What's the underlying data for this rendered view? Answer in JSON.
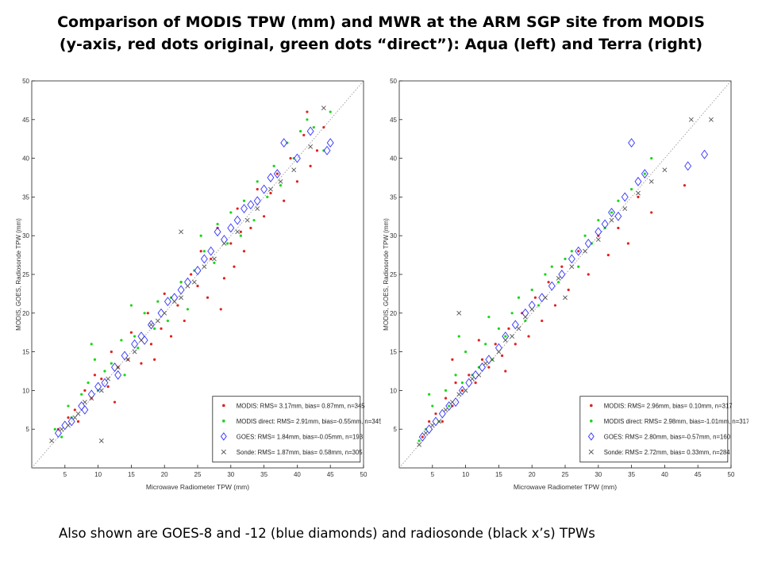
{
  "slide": {
    "title_line1": "Comparison of MODIS TPW (mm) and MWR at the ARM SGP site from MODIS",
    "title_line2": "(y-axis, red dots original, green dots “direct”): Aqua (left) and Terra (right)",
    "caption": "Also shown  are GOES-8 and -12 (blue diamonds) and radiosonde (black x’s) TPWs"
  },
  "colors": {
    "modis": "#e0211f",
    "modis_direct": "#19d619",
    "goes": "#3434ff",
    "sonde": "#555555",
    "one_to_one": "#9a9a9a"
  },
  "chart_data": [
    {
      "type": "scatter",
      "panel": "Aqua",
      "xlabel": "Microwave Radiometer TPW (mm)",
      "ylabel": "MODIS, GOES, Radiosonde TPW (mm)",
      "xlim": [
        0,
        50
      ],
      "ylim": [
        0,
        50
      ],
      "xticks": [
        5,
        10,
        15,
        20,
        25,
        30,
        35,
        40,
        45,
        50
      ],
      "yticks": [
        5,
        10,
        15,
        20,
        25,
        30,
        35,
        40,
        45,
        50
      ],
      "grid": false,
      "one_to_one_line": true,
      "legend_position": "bottom-right",
      "legend": [
        {
          "marker": "dot",
          "color_key": "modis",
          "label": "MODIS:  RMS= 3.17mm, bias= 0.87mm, n=345"
        },
        {
          "marker": "dot",
          "color_key": "modis_direct",
          "label": "MODIS direct:  RMS= 2.91mm, bias=-0.55mm, n=345"
        },
        {
          "marker": "diamond",
          "color_key": "goes",
          "label": "GOES:  RMS= 1.84mm, bias=-0.05mm, n=193"
        },
        {
          "marker": "x",
          "color_key": "sonde",
          "label": "Sonde:  RMS= 1.87mm, bias= 0.58mm, n=305"
        }
      ],
      "series": [
        {
          "name": "MODIS",
          "marker": "dot",
          "color_key": "modis",
          "x": [
            4.0,
            5.5,
            6.5,
            7.0,
            8.0,
            9.0,
            9.5,
            10.5,
            11.5,
            12.0,
            13.0,
            14.5,
            15.0,
            16.5,
            17.5,
            18.0,
            19.5,
            20.0,
            21.0,
            22.0,
            23.0,
            24.0,
            25.0,
            25.5,
            26.5,
            27.0,
            28.0,
            29.0,
            30.0,
            30.5,
            31.0,
            32.0,
            33.0,
            34.0,
            35.0,
            36.0,
            37.0,
            38.0,
            39.0,
            40.0,
            41.0,
            41.5,
            42.0,
            43.0,
            44.0,
            12.5,
            18.5,
            22.5,
            28.5,
            31.5
          ],
          "y": [
            5.0,
            6.5,
            7.5,
            6.0,
            10.0,
            9.0,
            12.0,
            11.5,
            10.5,
            15.0,
            13.0,
            14.0,
            17.5,
            13.5,
            20.0,
            16.0,
            18.0,
            22.5,
            17.0,
            21.0,
            19.0,
            25.0,
            23.5,
            28.0,
            22.0,
            27.0,
            31.0,
            24.5,
            29.0,
            26.0,
            33.5,
            28.0,
            31.0,
            36.0,
            32.5,
            35.5,
            38.0,
            34.5,
            40.0,
            37.0,
            43.0,
            46.0,
            39.0,
            41.0,
            44.0,
            8.5,
            14.0,
            24.0,
            20.5,
            30.5
          ]
        },
        {
          "name": "MODIS direct",
          "marker": "dot",
          "color_key": "modis_direct",
          "x": [
            3.5,
            4.5,
            5.5,
            6.0,
            7.5,
            8.5,
            9.5,
            10.0,
            11.0,
            12.0,
            13.5,
            14.0,
            15.5,
            16.0,
            17.0,
            18.5,
            19.0,
            20.5,
            21.0,
            22.5,
            23.5,
            24.5,
            25.5,
            26.0,
            27.5,
            28.0,
            29.5,
            30.0,
            31.5,
            32.0,
            33.5,
            34.0,
            35.5,
            36.5,
            37.5,
            38.5,
            39.5,
            40.5,
            41.5,
            42.5,
            44.0,
            45.0,
            9.0,
            15.0
          ],
          "y": [
            5.0,
            4.0,
            8.0,
            6.5,
            9.5,
            11.0,
            14.0,
            10.0,
            12.5,
            13.5,
            16.5,
            12.0,
            17.0,
            15.5,
            20.0,
            18.0,
            21.5,
            19.0,
            22.0,
            24.0,
            20.5,
            25.5,
            30.0,
            28.0,
            26.5,
            31.5,
            29.0,
            33.0,
            30.0,
            34.5,
            32.0,
            37.0,
            35.0,
            39.0,
            36.5,
            42.0,
            40.0,
            43.5,
            45.0,
            44.0,
            41.0,
            46.0,
            16.0,
            21.0
          ]
        },
        {
          "name": "GOES",
          "marker": "diamond",
          "color_key": "goes",
          "x": [
            4.0,
            5.0,
            6.0,
            7.5,
            8.0,
            9.0,
            10.0,
            11.0,
            12.5,
            13.0,
            14.0,
            15.5,
            16.5,
            17.0,
            18.0,
            19.5,
            20.5,
            21.5,
            22.5,
            23.5,
            25.0,
            26.0,
            27.0,
            28.0,
            29.0,
            30.0,
            31.0,
            32.0,
            33.0,
            34.0,
            35.0,
            36.0,
            37.0,
            38.0,
            40.0,
            42.0,
            44.5,
            45.0
          ],
          "y": [
            4.5,
            5.5,
            6.0,
            8.0,
            7.5,
            9.5,
            10.5,
            11.0,
            13.0,
            12.0,
            14.5,
            16.0,
            17.0,
            16.5,
            18.5,
            20.0,
            21.5,
            22.0,
            23.0,
            24.0,
            25.5,
            27.0,
            28.0,
            30.5,
            29.5,
            31.0,
            32.0,
            33.5,
            34.0,
            34.5,
            36.0,
            37.5,
            38.0,
            42.0,
            40.0,
            43.5,
            41.0,
            42.0
          ]
        },
        {
          "name": "Sonde",
          "marker": "x",
          "color_key": "sonde",
          "x": [
            3.0,
            4.5,
            5.5,
            6.5,
            7.0,
            8.0,
            9.0,
            10.5,
            11.5,
            13.0,
            14.5,
            15.5,
            16.5,
            18.0,
            19.0,
            20.0,
            21.5,
            22.5,
            23.5,
            24.5,
            26.0,
            27.5,
            29.0,
            31.0,
            32.5,
            34.0,
            36.0,
            37.5,
            39.5,
            42.0,
            44.0,
            10.5,
            22.5
          ],
          "y": [
            3.5,
            5.0,
            5.5,
            6.5,
            7.0,
            8.5,
            9.0,
            10.0,
            11.5,
            13.0,
            14.0,
            15.0,
            16.5,
            18.5,
            19.0,
            20.0,
            21.5,
            22.0,
            23.5,
            24.0,
            26.0,
            27.0,
            29.0,
            30.5,
            32.0,
            33.5,
            36.0,
            37.0,
            38.5,
            41.5,
            46.5,
            3.5,
            30.5
          ]
        }
      ]
    },
    {
      "type": "scatter",
      "panel": "Terra",
      "xlabel": "Microwave Radiometer TPW (mm)",
      "ylabel": "MODIS, GOES, Radiosonde TPW (mm)",
      "xlim": [
        0,
        50
      ],
      "ylim": [
        0,
        50
      ],
      "xticks": [
        5,
        10,
        15,
        20,
        25,
        30,
        35,
        40,
        45,
        50
      ],
      "yticks": [
        5,
        10,
        15,
        20,
        25,
        30,
        35,
        40,
        45,
        50
      ],
      "grid": false,
      "one_to_one_line": true,
      "legend_position": "bottom-right",
      "legend": [
        {
          "marker": "dot",
          "color_key": "modis",
          "label": "MODIS: RMS= 2.96mm, bias= 0.10mm, n=317"
        },
        {
          "marker": "dot",
          "color_key": "modis_direct",
          "label": "MODIS direct: RMS= 2.98mm, bias=-1.01mm, n=317"
        },
        {
          "marker": "diamond",
          "color_key": "goes",
          "label": "GOES: RMS= 2.80mm, bias=-0.57mm, n=160"
        },
        {
          "marker": "x",
          "color_key": "sonde",
          "label": "Sonde: RMS= 2.72mm, bias= 0.33mm, n=284"
        }
      ],
      "series": [
        {
          "name": "MODIS",
          "marker": "dot",
          "color_key": "modis",
          "x": [
            3.5,
            4.5,
            5.5,
            6.5,
            7.0,
            8.0,
            8.5,
            9.5,
            10.5,
            11.5,
            12.5,
            13.5,
            14.5,
            15.5,
            16.5,
            17.5,
            18.5,
            19.5,
            20.5,
            21.5,
            22.5,
            23.5,
            24.5,
            25.5,
            27.0,
            28.5,
            30.0,
            31.5,
            33.0,
            34.5,
            36.0,
            38.0,
            43.0,
            8.0,
            12.0,
            16.0
          ],
          "y": [
            4.0,
            6.0,
            7.0,
            6.0,
            9.0,
            8.0,
            11.0,
            10.0,
            12.0,
            11.0,
            14.0,
            13.0,
            16.0,
            14.5,
            18.0,
            16.0,
            20.0,
            17.0,
            22.0,
            19.0,
            24.0,
            21.0,
            26.0,
            23.0,
            28.0,
            25.0,
            30.0,
            27.5,
            31.0,
            29.0,
            35.0,
            33.0,
            36.5,
            14.0,
            16.5,
            12.5
          ]
        },
        {
          "name": "MODIS direct",
          "marker": "dot",
          "color_key": "modis_direct",
          "x": [
            3.0,
            4.0,
            5.0,
            6.0,
            7.0,
            7.5,
            8.5,
            9.5,
            10.0,
            11.0,
            12.0,
            13.0,
            14.0,
            15.0,
            16.0,
            17.0,
            18.0,
            19.0,
            20.0,
            21.0,
            22.0,
            23.0,
            24.0,
            25.0,
            26.0,
            27.0,
            28.0,
            29.0,
            30.0,
            31.0,
            32.0,
            33.0,
            35.0,
            37.0,
            38.0,
            4.5,
            9.0,
            13.5
          ],
          "y": [
            3.5,
            5.0,
            8.0,
            6.0,
            10.0,
            8.0,
            12.0,
            11.0,
            15.0,
            12.0,
            13.0,
            16.0,
            14.0,
            18.0,
            17.0,
            20.0,
            22.0,
            19.0,
            23.0,
            21.0,
            25.0,
            26.0,
            24.0,
            27.0,
            28.0,
            26.0,
            30.0,
            29.0,
            32.0,
            31.0,
            33.0,
            34.5,
            36.0,
            38.0,
            40.0,
            9.5,
            17.0,
            19.5
          ]
        },
        {
          "name": "GOES",
          "marker": "diamond",
          "color_key": "goes",
          "x": [
            3.5,
            4.5,
            5.5,
            6.5,
            7.5,
            8.5,
            9.5,
            10.5,
            11.5,
            12.5,
            13.5,
            15.0,
            16.0,
            17.5,
            19.0,
            20.0,
            21.5,
            23.0,
            24.5,
            26.0,
            27.0,
            28.5,
            30.0,
            31.0,
            32.0,
            33.0,
            34.0,
            35.0,
            36.0,
            37.0,
            43.5,
            46.0
          ],
          "y": [
            4.0,
            5.0,
            6.0,
            7.0,
            8.0,
            8.5,
            10.0,
            11.0,
            12.0,
            13.0,
            14.0,
            15.5,
            17.0,
            18.5,
            20.0,
            21.0,
            22.0,
            23.5,
            25.0,
            27.0,
            28.0,
            29.0,
            30.5,
            31.5,
            33.0,
            32.5,
            35.0,
            42.0,
            37.0,
            38.0,
            39.0,
            40.5
          ]
        },
        {
          "name": "Sonde",
          "marker": "x",
          "color_key": "sonde",
          "x": [
            3.0,
            4.0,
            5.0,
            6.0,
            7.0,
            8.0,
            9.0,
            10.0,
            11.0,
            12.0,
            13.0,
            14.0,
            15.0,
            16.0,
            17.0,
            18.0,
            19.0,
            20.0,
            22.0,
            24.0,
            26.0,
            28.0,
            30.0,
            32.0,
            34.0,
            36.0,
            38.0,
            40.0,
            44.0,
            47.0,
            9.0,
            25.0
          ],
          "y": [
            3.0,
            4.5,
            5.5,
            6.0,
            7.5,
            8.5,
            9.5,
            10.0,
            11.5,
            12.0,
            13.5,
            14.0,
            15.0,
            16.5,
            17.0,
            18.0,
            19.5,
            20.5,
            22.0,
            24.5,
            26.0,
            28.0,
            29.5,
            32.0,
            33.5,
            35.5,
            37.0,
            38.5,
            45.0,
            45.0,
            20.0,
            22.0
          ]
        }
      ]
    }
  ]
}
